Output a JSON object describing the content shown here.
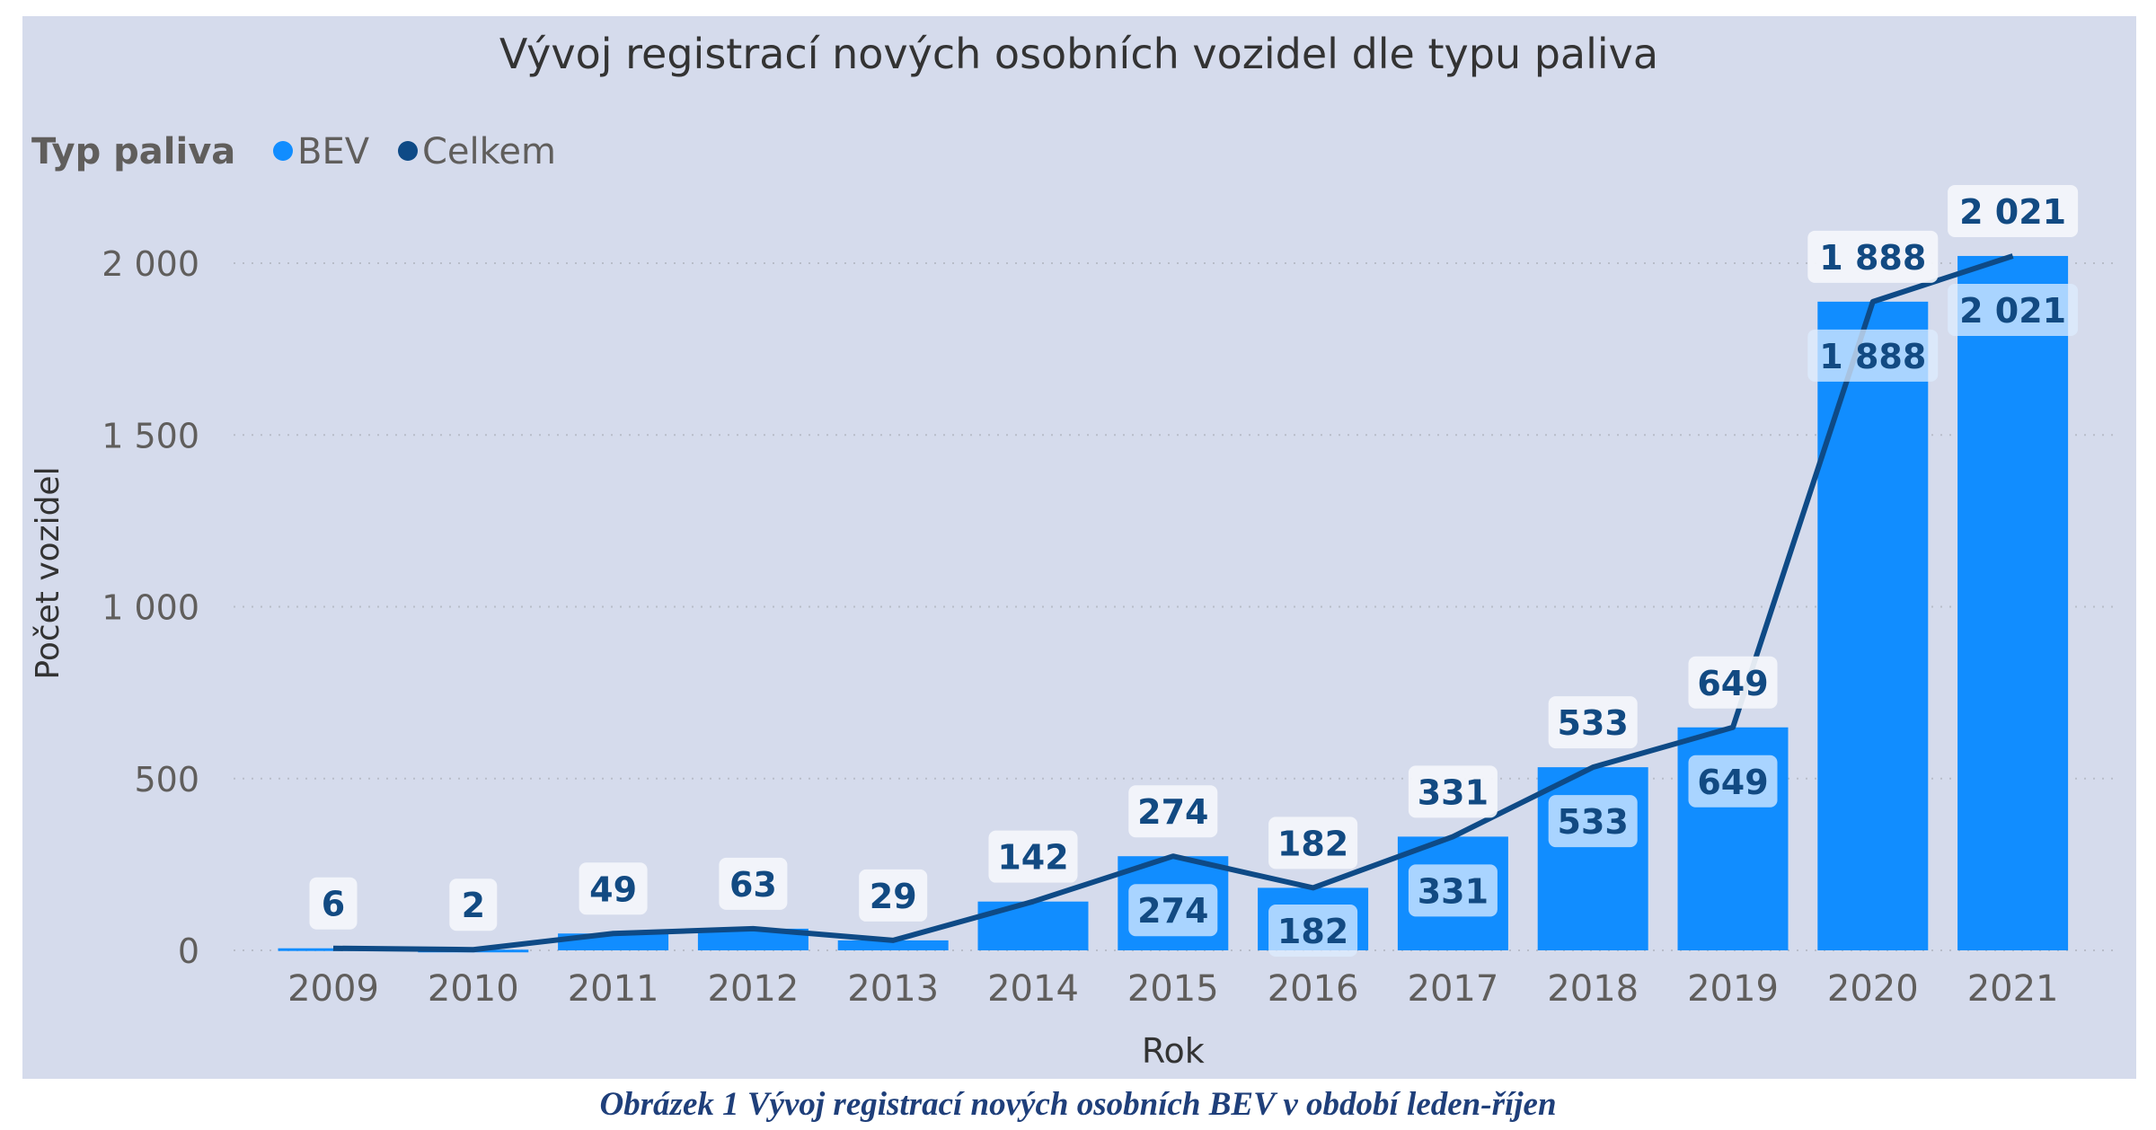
{
  "chart_data": {
    "type": "bar+line",
    "title": "Vývoj registrací nových osobních vozidel dle typu paliva",
    "legend": {
      "title": "Typ paliva",
      "placement": "top-left",
      "entries": [
        {
          "name": "BEV",
          "color": "#118dff"
        },
        {
          "name": "Celkem",
          "color": "#0e4a86"
        }
      ]
    },
    "xlabel": "Rok",
    "ylabel": "Počet vozidel",
    "ylim": [
      0,
      2100
    ],
    "yticks": [
      0,
      500,
      1000,
      1500,
      2000
    ],
    "ytick_labels": [
      "0",
      "500",
      "1 000",
      "1 500",
      "2 000"
    ],
    "grid": "horizontal dotted",
    "categories": [
      "2009",
      "2010",
      "2011",
      "2012",
      "2013",
      "2014",
      "2015",
      "2016",
      "2017",
      "2018",
      "2019",
      "2020",
      "2021"
    ],
    "series": [
      {
        "name": "BEV",
        "type": "bar",
        "values": [
          6,
          2,
          49,
          63,
          29,
          142,
          274,
          182,
          331,
          533,
          649,
          1888,
          2021
        ],
        "labels": [
          "",
          "",
          "",
          "",
          "",
          "",
          "274",
          "182",
          "331",
          "533",
          "649",
          "1 888",
          "2 021"
        ]
      },
      {
        "name": "Celkem",
        "type": "line",
        "values": [
          6,
          2,
          49,
          63,
          29,
          142,
          274,
          182,
          331,
          533,
          649,
          1888,
          2021
        ],
        "labels": [
          "6",
          "2",
          "49",
          "63",
          "29",
          "142",
          "274",
          "182",
          "331",
          "533",
          "649",
          "1 888",
          "2 021"
        ]
      }
    ]
  },
  "caption": "Obrázek 1 Vývoj registrací nových osobních BEV v období leden-říjen"
}
